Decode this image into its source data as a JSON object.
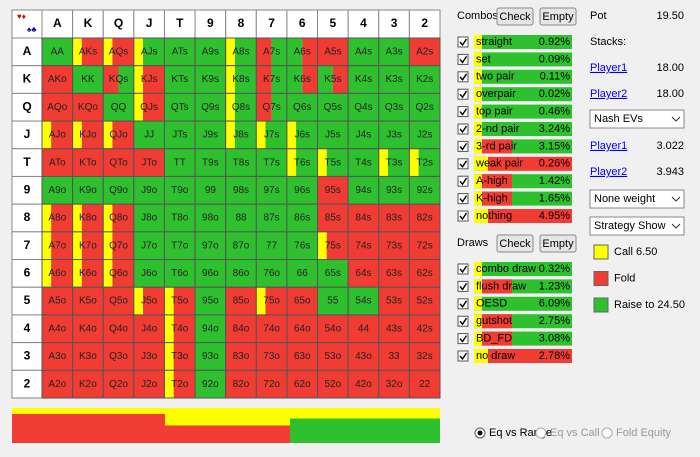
{
  "grid": {
    "header": [
      "A",
      "K",
      "Q",
      "J",
      "T",
      "9",
      "8",
      "7",
      "6",
      "5",
      "4",
      "3",
      "2"
    ],
    "rows": [
      {
        "rank": "A",
        "cells": [
          "AA",
          "AKs",
          "AQs",
          "AJs",
          "ATs",
          "A9s",
          "A8s",
          "A7s",
          "A6s",
          "A5s",
          "A4s",
          "A3s",
          "A2s"
        ]
      },
      {
        "rank": "K",
        "cells": [
          "AKo",
          "KK",
          "KQs",
          "KJs",
          "KTs",
          "K9s",
          "K8s",
          "K7s",
          "K6s",
          "K5s",
          "K4s",
          "K3s",
          "K2s"
        ]
      },
      {
        "rank": "Q",
        "cells": [
          "AQo",
          "KQo",
          "QQ",
          "QJs",
          "QTs",
          "Q9s",
          "Q8s",
          "Q7s",
          "Q6s",
          "Q5s",
          "Q4s",
          "Q3s",
          "Q2s"
        ]
      },
      {
        "rank": "J",
        "cells": [
          "AJo",
          "KJo",
          "QJo",
          "JJ",
          "JTs",
          "J9s",
          "J8s",
          "J7s",
          "J6s",
          "J5s",
          "J4s",
          "J3s",
          "J2s"
        ]
      },
      {
        "rank": "T",
        "cells": [
          "ATo",
          "KTo",
          "QTo",
          "JTo",
          "TT",
          "T9s",
          "T8s",
          "T7s",
          "T6s",
          "T5s",
          "T4s",
          "T3s",
          "T2s"
        ]
      },
      {
        "rank": "9",
        "cells": [
          "A9o",
          "K9o",
          "Q9o",
          "J9o",
          "T9o",
          "99",
          "98s",
          "97s",
          "96s",
          "95s",
          "94s",
          "93s",
          "92s"
        ]
      },
      {
        "rank": "8",
        "cells": [
          "A8o",
          "K8o",
          "Q8o",
          "J8o",
          "T8o",
          "98o",
          "88",
          "87s",
          "86s",
          "85s",
          "84s",
          "83s",
          "82s"
        ]
      },
      {
        "rank": "7",
        "cells": [
          "A7o",
          "K7o",
          "Q7o",
          "J7o",
          "T7o",
          "97o",
          "87o",
          "77",
          "76s",
          "75s",
          "74s",
          "73s",
          "72s"
        ]
      },
      {
        "rank": "6",
        "cells": [
          "A6o",
          "K6o",
          "Q6o",
          "J6o",
          "T6o",
          "96o",
          "86o",
          "76o",
          "66",
          "65s",
          "64s",
          "63s",
          "62s"
        ]
      },
      {
        "rank": "5",
        "cells": [
          "A5o",
          "K5o",
          "Q5o",
          "J5o",
          "T5o",
          "95o",
          "85o",
          "75o",
          "65o",
          "55",
          "54s",
          "53s",
          "52s"
        ]
      },
      {
        "rank": "4",
        "cells": [
          "A4o",
          "K4o",
          "Q4o",
          "J4o",
          "T4o",
          "94o",
          "84o",
          "74o",
          "64o",
          "54o",
          "44",
          "43s",
          "42s"
        ]
      },
      {
        "rank": "3",
        "cells": [
          "A3o",
          "K3o",
          "Q3o",
          "J3o",
          "T3o",
          "93o",
          "83o",
          "73o",
          "63o",
          "53o",
          "43o",
          "33",
          "32s"
        ]
      },
      {
        "rank": "2",
        "cells": [
          "A2o",
          "K2o",
          "Q2o",
          "J2o",
          "T2o",
          "92o",
          "82o",
          "72o",
          "62o",
          "52o",
          "42o",
          "32o",
          "22"
        ]
      }
    ]
  },
  "combos": {
    "title": "Combos",
    "check": "Check",
    "empty": "Empty",
    "items": [
      {
        "label": "straight",
        "value": "0.92%"
      },
      {
        "label": "set",
        "value": "0.09%"
      },
      {
        "label": "two pair",
        "value": "0.11%"
      },
      {
        "label": "overpair",
        "value": "0.02%"
      },
      {
        "label": "top pair",
        "value": "0.46%"
      },
      {
        "label": "2-nd pair",
        "value": "3.24%"
      },
      {
        "label": "3-rd pair",
        "value": "3.15%"
      },
      {
        "label": "weak pair",
        "value": "0.26%"
      },
      {
        "label": "A-high",
        "value": "1.42%"
      },
      {
        "label": "K-high",
        "value": "1.65%"
      },
      {
        "label": "nothing",
        "value": "4.95%"
      }
    ]
  },
  "draws": {
    "title": "Draws",
    "check": "Check",
    "empty": "Empty",
    "items": [
      {
        "label": "combo draw",
        "value": "0.32%"
      },
      {
        "label": "flush draw",
        "value": "1.23%"
      },
      {
        "label": "OESD",
        "value": "6.09%"
      },
      {
        "label": "gutshot",
        "value": "2.75%"
      },
      {
        "label": "BD_FD",
        "value": "3.08%"
      },
      {
        "label": "no draw",
        "value": "2.78%"
      }
    ]
  },
  "pot": {
    "label": "Pot",
    "value": "19.50"
  },
  "stacks": {
    "label": "Stacks:",
    "players": [
      {
        "name": "Player1",
        "value": "18.00"
      },
      {
        "name": "Player2",
        "value": "18.00"
      }
    ]
  },
  "ev_select": "Nash EVs",
  "evs": [
    {
      "name": "Player1",
      "value": "3.022"
    },
    {
      "name": "Player2",
      "value": "3.943"
    }
  ],
  "weight_select": "None weight",
  "strategy_select": "Strategy Show",
  "legend": [
    {
      "label": "Call 6.50"
    },
    {
      "label": "Fold"
    },
    {
      "label": "Raise to 24.50"
    }
  ],
  "radios": [
    "Eq vs Range",
    "Eq vs Call",
    "Fold Equity"
  ]
}
